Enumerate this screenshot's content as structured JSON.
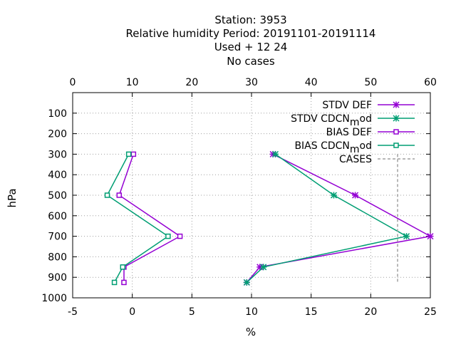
{
  "chart_data": {
    "type": "line",
    "title_lines": [
      "Station:      3953",
      "Relative humidity  Period: 20191101-20191114",
      "Used   + 12 24",
      "No cases"
    ],
    "ylabel": "hPa",
    "xlabel": "%",
    "ylim": [
      1000,
      0
    ],
    "bottom_xlim": [
      -5,
      25
    ],
    "top_xlim": [
      0,
      60
    ],
    "y_ticks": [
      100,
      200,
      300,
      400,
      500,
      600,
      700,
      800,
      900,
      1000
    ],
    "bottom_x_ticks": [
      -5,
      0,
      5,
      10,
      15,
      20,
      25
    ],
    "top_x_ticks": [
      0,
      10,
      20,
      30,
      40,
      50,
      60
    ],
    "grid": true,
    "legend_position": "top-right",
    "series": [
      {
        "name": "STDV DEF",
        "color": "#9400d3",
        "marker": "x",
        "axis": "bottom",
        "points": [
          [
            11.8,
            300
          ],
          [
            18.7,
            500
          ],
          [
            25.0,
            700
          ],
          [
            10.7,
            850
          ],
          [
            9.6,
            925
          ]
        ]
      },
      {
        "name": "STDV CDCN",
        "name_sub": "m",
        "name_tail": "od",
        "color": "#009e73",
        "marker": "x",
        "axis": "bottom",
        "points": [
          [
            12.0,
            300
          ],
          [
            16.9,
            500
          ],
          [
            23.0,
            700
          ],
          [
            11.0,
            850
          ],
          [
            9.6,
            925
          ]
        ]
      },
      {
        "name": "BIAS DEF",
        "color": "#9400d3",
        "marker": "square",
        "axis": "bottom",
        "points": [
          [
            0.1,
            300
          ],
          [
            -1.1,
            500
          ],
          [
            4.0,
            700
          ],
          [
            -0.7,
            850
          ],
          [
            -0.7,
            925
          ]
        ]
      },
      {
        "name": "BIAS CDCN",
        "name_sub": "m",
        "name_tail": "od",
        "color": "#009e73",
        "marker": "square",
        "axis": "bottom",
        "points": [
          [
            -0.3,
            300
          ],
          [
            -2.1,
            500
          ],
          [
            3.0,
            700
          ],
          [
            -0.8,
            850
          ],
          [
            -1.5,
            925
          ]
        ]
      },
      {
        "name": "CASES",
        "color": "#a0a0a0",
        "marker": "none",
        "dashed": true,
        "axis": "top",
        "points": [
          [
            54.5,
            300
          ],
          [
            54.5,
            925
          ]
        ]
      }
    ]
  }
}
